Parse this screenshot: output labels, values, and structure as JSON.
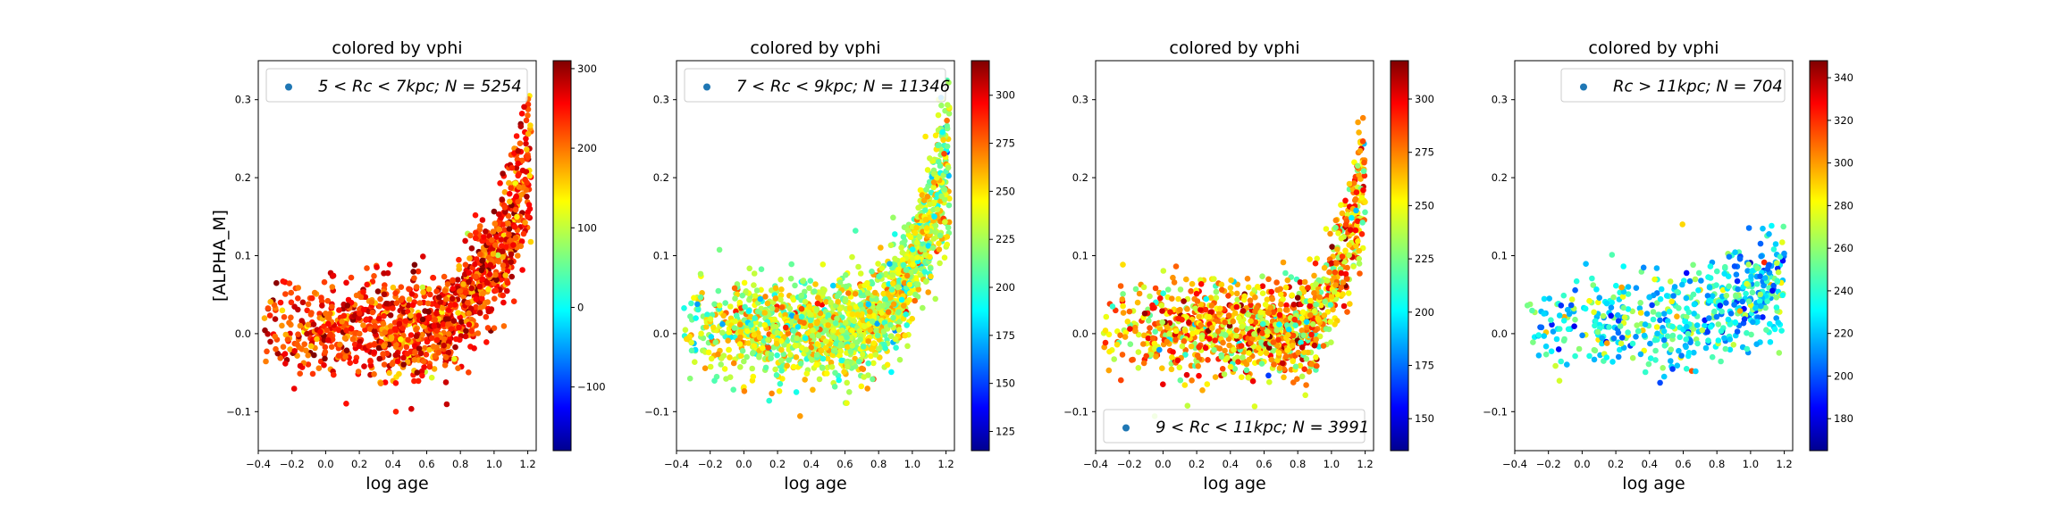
{
  "figure": {
    "background": "#ffffff"
  },
  "chart_data": [
    {
      "type": "scatter",
      "title": "colored by vphi",
      "xlabel": "log age",
      "ylabel": "[ALPHA_M]",
      "xlim": [
        -0.4,
        1.25
      ],
      "ylim": [
        -0.15,
        0.35
      ],
      "xticks": [
        "-0.4",
        "-0.2",
        "0.0",
        "0.2",
        "0.4",
        "0.6",
        "0.8",
        "1.0",
        "1.2"
      ],
      "yticks": [
        "-0.1",
        "0.0",
        "0.1",
        "0.2",
        "0.3"
      ],
      "legend": {
        "label_main": "5 < Rc < 7kpc;",
        "label_n": "N = 5254",
        "location": "upper-left",
        "marker_color": "#1f77b4"
      },
      "colorbar": {
        "cmap": "jet",
        "range": [
          -180,
          310
        ],
        "ticks": [
          "-100",
          "0",
          "100",
          "200",
          "300"
        ]
      },
      "series": [
        {
          "name": "5 < Rc < 7kpc",
          "count": 5254,
          "cloud": {
            "x_range": [
              -0.38,
              1.22
            ],
            "y_base": [
              -0.02,
              0.03
            ],
            "y_rise": 0.26,
            "rise_start": 0.55,
            "color_value_mean": 230,
            "color_value_spread": 45,
            "density": 1300
          }
        }
      ]
    },
    {
      "type": "scatter",
      "title": "colored by vphi",
      "xlabel": "log age",
      "ylabel": "",
      "xlim": [
        -0.4,
        1.25
      ],
      "ylim": [
        -0.15,
        0.35
      ],
      "xticks": [
        "-0.4",
        "-0.2",
        "0.0",
        "0.2",
        "0.4",
        "0.6",
        "0.8",
        "1.0",
        "1.2"
      ],
      "yticks": [
        "-0.1",
        "0.0",
        "0.1",
        "0.2",
        "0.3"
      ],
      "legend": {
        "label_main": "7 < Rc < 9kpc;",
        "label_n": "N = 11346",
        "location": "upper-left",
        "marker_color": "#1f77b4"
      },
      "colorbar": {
        "cmap": "jet",
        "range": [
          115,
          318
        ],
        "ticks": [
          "125",
          "150",
          "175",
          "200",
          "225",
          "250",
          "275",
          "300"
        ]
      },
      "series": [
        {
          "name": "7 < Rc < 9kpc",
          "count": 11346,
          "cloud": {
            "x_range": [
              -0.38,
              1.22
            ],
            "y_base": [
              -0.02,
              0.03
            ],
            "y_rise": 0.26,
            "rise_start": 0.6,
            "color_value_mean": 232,
            "color_value_spread": 22,
            "density": 1700
          }
        }
      ]
    },
    {
      "type": "scatter",
      "title": "colored by vphi",
      "xlabel": "log age",
      "ylabel": "",
      "xlim": [
        -0.4,
        1.25
      ],
      "ylim": [
        -0.15,
        0.35
      ],
      "xticks": [
        "-0.4",
        "-0.2",
        "0.0",
        "0.2",
        "0.4",
        "0.6",
        "0.8",
        "1.0",
        "1.2"
      ],
      "yticks": [
        "-0.1",
        "0.0",
        "0.1",
        "0.2",
        "0.3"
      ],
      "legend": {
        "label_main": "9 < Rc < 11kpc;",
        "label_n": "N = 3991",
        "location": "lower-left",
        "marker_color": "#1f77b4"
      },
      "colorbar": {
        "cmap": "jet",
        "range": [
          135,
          318
        ],
        "ticks": [
          "150",
          "175",
          "200",
          "225",
          "250",
          "275",
          "300"
        ]
      },
      "series": [
        {
          "name": "9 < Rc < 11kpc",
          "count": 3991,
          "cloud": {
            "x_range": [
              -0.38,
              1.2
            ],
            "y_base": [
              -0.02,
              0.03
            ],
            "y_rise": 0.24,
            "rise_start": 0.75,
            "color_value_mean": 262,
            "color_value_spread": 28,
            "density": 1200
          }
        }
      ]
    },
    {
      "type": "scatter",
      "title": "colored by vphi",
      "xlabel": "log age",
      "ylabel": "",
      "xlim": [
        -0.4,
        1.25
      ],
      "ylim": [
        -0.15,
        0.35
      ],
      "xticks": [
        "-0.4",
        "-0.2",
        "0.0",
        "0.2",
        "0.4",
        "0.6",
        "0.8",
        "1.0",
        "1.2"
      ],
      "yticks": [
        "-0.1",
        "0.0",
        "0.1",
        "0.2",
        "0.3"
      ],
      "legend": {
        "label_main": "Rc > 11kpc;",
        "label_n": "N = 704",
        "location": "upper-right",
        "marker_color": "#1f77b4"
      },
      "colorbar": {
        "cmap": "jet",
        "range": [
          165,
          348
        ],
        "ticks": [
          "180",
          "200",
          "220",
          "240",
          "260",
          "280",
          "300",
          "320",
          "340"
        ]
      },
      "series": [
        {
          "name": "Rc > 11kpc",
          "count": 704,
          "cloud": {
            "x_range": [
              -0.38,
              1.2
            ],
            "y_base": [
              -0.02,
              0.04
            ],
            "y_rise": 0.07,
            "rise_start": 0.2,
            "color_value_mean": 235,
            "color_value_spread": 22,
            "density": 560
          }
        }
      ]
    }
  ]
}
